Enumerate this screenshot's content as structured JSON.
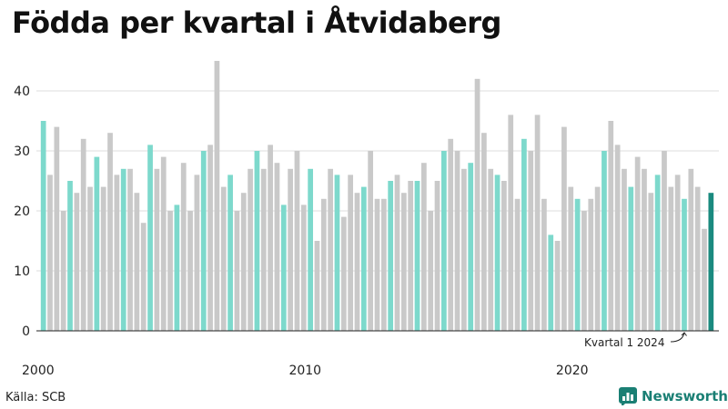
{
  "title": "Födda per kvartal i Åtvidaberg",
  "source": "Källa: SCB",
  "brand": {
    "name": "Newsworthy",
    "icon": "newsworthy-logo-icon"
  },
  "colors": {
    "q1": "#7dd9cc",
    "other": "#c9c9c9",
    "latest": "#1a8a7f",
    "grid": "#dddddd",
    "brand": "#1a7f74"
  },
  "chart_data": {
    "type": "bar",
    "title": "Födda per kvartal i Åtvidaberg",
    "xlabel": "",
    "ylabel": "",
    "ylim": [
      0,
      45
    ],
    "yticks": [
      0,
      10,
      20,
      30,
      40
    ],
    "xtick_labels": [
      "2000",
      "2010",
      "2020"
    ],
    "start_year": 2000,
    "grid": true,
    "highlight_note": "Kvartal 1 2024",
    "values": [
      35,
      26,
      34,
      20,
      25,
      23,
      32,
      24,
      29,
      24,
      33,
      26,
      27,
      27,
      23,
      18,
      31,
      27,
      29,
      20,
      21,
      28,
      20,
      26,
      30,
      31,
      45,
      24,
      26,
      20,
      23,
      27,
      30,
      27,
      31,
      28,
      21,
      27,
      30,
      21,
      27,
      15,
      22,
      27,
      26,
      19,
      26,
      23,
      24,
      30,
      22,
      22,
      25,
      26,
      23,
      25,
      25,
      28,
      20,
      25,
      30,
      32,
      30,
      27,
      28,
      42,
      33,
      27,
      26,
      25,
      36,
      22,
      32,
      30,
      36,
      22,
      16,
      15,
      34,
      24,
      22,
      20,
      22,
      24,
      30,
      35,
      31,
      27,
      24,
      29,
      27,
      23,
      26,
      30,
      24,
      26,
      22,
      27,
      24,
      17,
      23
    ]
  }
}
